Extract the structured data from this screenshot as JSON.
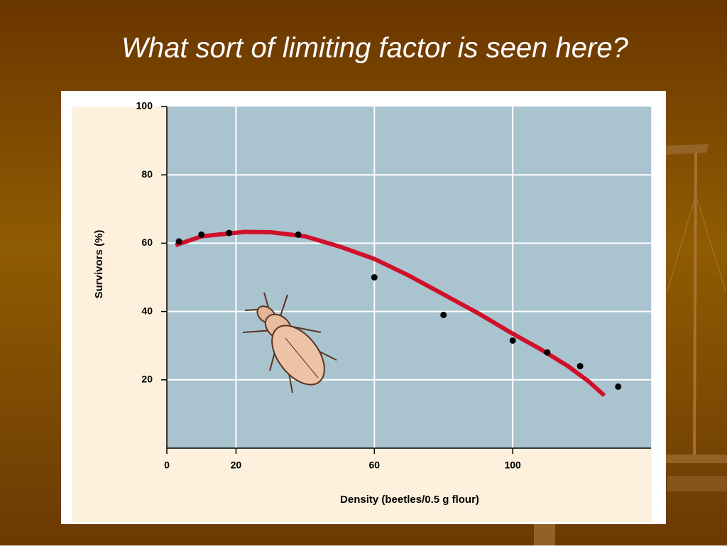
{
  "slide_title": "What sort of limiting factor is seen here?",
  "chart_data": {
    "type": "scatter",
    "x_label": "Density (beetles/0.5 g flour)",
    "y_label": "Survivors (%)",
    "xlim": [
      0,
      140
    ],
    "ylim": [
      0,
      100
    ],
    "xticks": [
      0,
      20,
      60,
      100
    ],
    "yticks": [
      20,
      40,
      60,
      80,
      100
    ],
    "xgrid": [
      20,
      60,
      100
    ],
    "ygrid": [
      20,
      40,
      60,
      80
    ],
    "series": [
      {
        "mode": "markers",
        "color": "#000000",
        "x": [
          3.5,
          10,
          18,
          38,
          60,
          80,
          100,
          110,
          119.5,
          130.5
        ],
        "values": [
          60.5,
          62.5,
          63,
          62.5,
          50,
          39,
          31.5,
          28,
          24,
          18
        ]
      },
      {
        "mode": "line",
        "color": "#d0102a",
        "x": [
          2.5,
          10,
          22.5,
          30,
          40,
          50,
          60,
          70,
          80,
          90,
          100,
          108,
          116,
          122,
          126.5
        ],
        "values": [
          59.4,
          62,
          63.3,
          63.2,
          62,
          59,
          55.4,
          50.5,
          45,
          39.5,
          33.5,
          29,
          24,
          19.5,
          15.4
        ]
      }
    ]
  }
}
